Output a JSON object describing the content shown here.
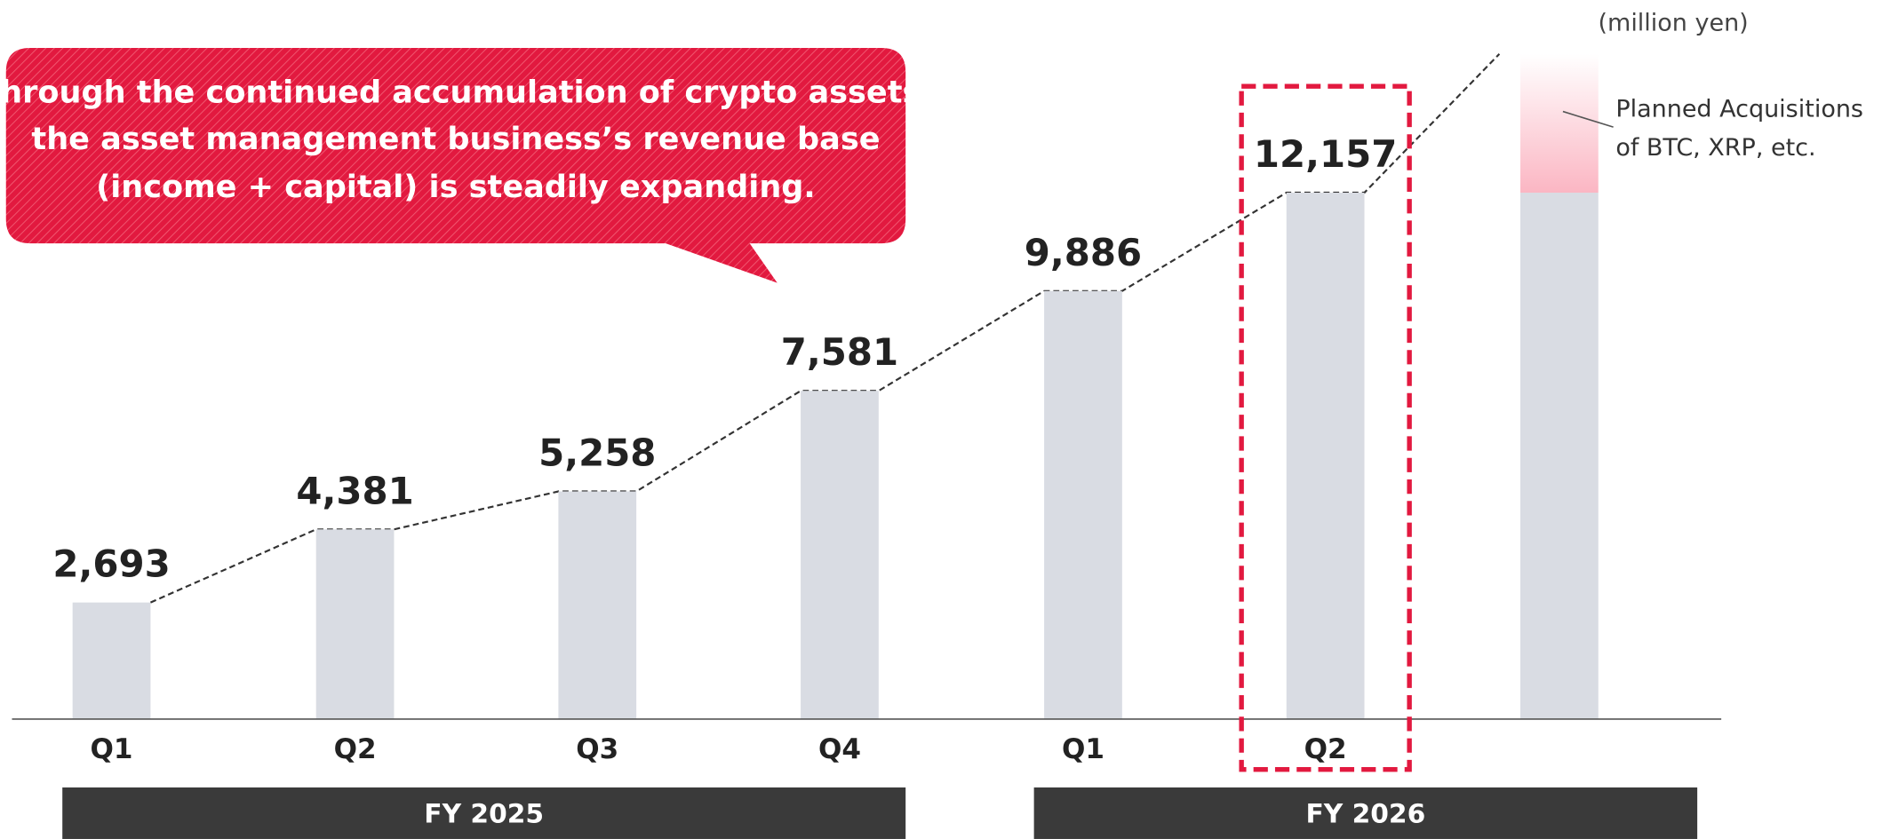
{
  "chart_data": {
    "type": "bar",
    "unit_label": "(million yen)",
    "callout": [
      "Through the continued accumulation of crypto assets,",
      "the asset management business’s revenue base",
      "(income + capital) is steadily expanding."
    ],
    "categories": [
      "Q1",
      "Q2",
      "Q3",
      "Q4",
      "Q1",
      "Q2",
      null
    ],
    "values": [
      2693,
      4381,
      5258,
      7581,
      9886,
      12157,
      12157
    ],
    "value_labels": [
      "2,693",
      "4,381",
      "5,258",
      "7,581",
      "9,886",
      "12,157",
      null
    ],
    "color": "#d9dce3",
    "planned": {
      "label": [
        "Planned Acquisitions",
        "of BTC, XRP, etc."
      ],
      "values": [
        null,
        null,
        null,
        null,
        null,
        null,
        3200
      ],
      "color": "#fbb6c3"
    },
    "groups": [
      {
        "label": "FY 2025",
        "span": [
          0,
          3
        ]
      },
      {
        "label": "FY 2026",
        "span": [
          4,
          6
        ]
      }
    ],
    "highlight": 5,
    "ylim": [
      0,
      15360
    ]
  }
}
